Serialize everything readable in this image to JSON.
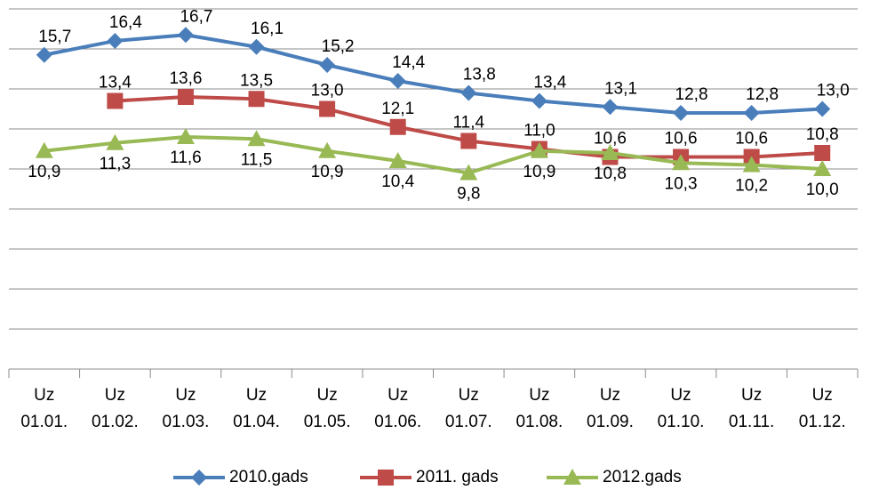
{
  "chart_data": {
    "type": "line",
    "categories": [
      "Uz 01.01.",
      "Uz 01.02.",
      "Uz 01.03.",
      "Uz 01.04.",
      "Uz 01.05.",
      "Uz 01.06.",
      "Uz 01.07.",
      "Uz 01.08.",
      "Uz 01.09.",
      "Uz 01.10.",
      "Uz 01.11.",
      "Uz 01.12."
    ],
    "series": [
      {
        "name": "2010.gads",
        "color": "#4a7ebb",
        "marker": "diamond",
        "label_position": "above",
        "values": [
          15.7,
          16.4,
          16.7,
          16.1,
          15.2,
          14.4,
          13.8,
          13.4,
          13.1,
          12.8,
          12.8,
          13.0
        ],
        "value_labels": [
          "15,7",
          "16,4",
          "16,7",
          "16,1",
          "15,2",
          "14,4",
          "13,8",
          "13,4",
          "13,1",
          "12,8",
          "12,8",
          "13,0"
        ]
      },
      {
        "name": "2011. gads",
        "color": "#be4b48",
        "marker": "square",
        "label_position": "above",
        "values": [
          null,
          13.4,
          13.6,
          13.5,
          13.0,
          12.1,
          11.4,
          11.0,
          10.6,
          10.6,
          10.6,
          10.8
        ],
        "value_labels": [
          null,
          "13,4",
          "13,6",
          "13,5",
          "13,0",
          "12,1",
          "11,4",
          "11,0",
          "10,6",
          "10,6",
          "10,6",
          "10,8"
        ]
      },
      {
        "name": "2012.gads",
        "color": "#98b954",
        "marker": "triangle",
        "label_position": "below",
        "values": [
          10.9,
          11.3,
          11.6,
          11.5,
          10.9,
          10.4,
          9.8,
          10.9,
          10.8,
          10.3,
          10.2,
          10.0
        ],
        "value_labels": [
          "10,9",
          "11,3",
          "11,6",
          "11,5",
          "10,9",
          "10,4",
          "9,8",
          "10,9",
          "10,8",
          "10,3",
          "10,2",
          "10,0"
        ]
      }
    ],
    "ylim": [
      0,
      18
    ],
    "yticks": [
      0,
      2,
      4,
      6,
      8,
      10,
      12,
      14,
      16,
      18
    ],
    "grid": true,
    "legend": "bottom"
  }
}
